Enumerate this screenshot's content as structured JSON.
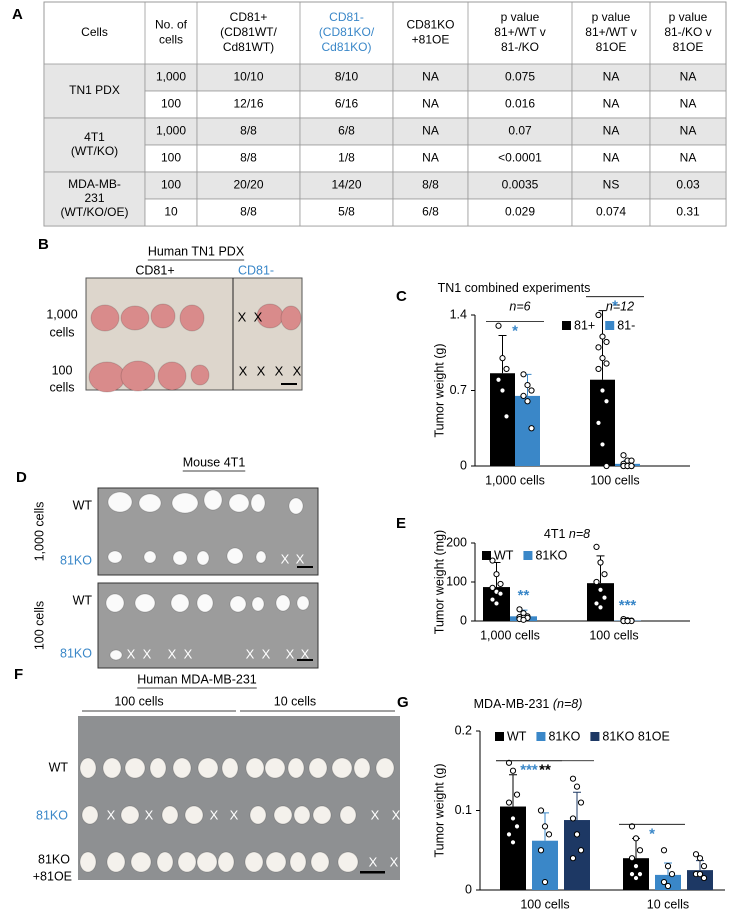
{
  "panel_labels": [
    "A",
    "B",
    "C",
    "D",
    "E",
    "F",
    "G"
  ],
  "table": {
    "header": [
      [
        "Cells"
      ],
      [
        "No. of",
        "cells"
      ],
      [
        "CD81+",
        "(CD81WT/",
        "Cd81WT)"
      ],
      [
        "CD81-",
        "(CD81KO/",
        "Cd81KO)"
      ],
      [
        "CD81KO",
        "+81OE"
      ],
      [
        "p value",
        "81+/WT v",
        "81-/KO"
      ],
      [
        "p value",
        "81+/WT v",
        "81OE"
      ],
      [
        "p value",
        "81-/KO v",
        "81OE"
      ]
    ],
    "groups": [
      {
        "label": [
          "TN1 PDX"
        ],
        "rows": [
          [
            "1,000",
            "10/10",
            "8/10",
            "NA",
            "0.075",
            "NA",
            "NA"
          ],
          [
            "100",
            "12/16",
            "6/16",
            "NA",
            "0.016",
            "NA",
            "NA"
          ]
        ]
      },
      {
        "label": [
          "4T1",
          "(WT/KO)"
        ],
        "rows": [
          [
            "1,000",
            "8/8",
            "6/8",
            "NA",
            "0.07",
            "NA",
            "NA"
          ],
          [
            "100",
            "8/8",
            "1/8",
            "NA",
            "<0.0001",
            "NA",
            "NA"
          ]
        ]
      },
      {
        "label": [
          "MDA-MB-",
          "231",
          "(WT/KO/OE)"
        ],
        "rows": [
          [
            "100",
            "20/20",
            "14/20",
            "8/8",
            "0.0035",
            "NS",
            "0.03"
          ],
          [
            "10",
            "8/8",
            "5/8",
            "6/8",
            "0.029",
            "0.074",
            "0.31"
          ]
        ]
      }
    ]
  },
  "panel_b": {
    "title": "Human TN1 PDX",
    "columns": [
      "CD81+",
      "CD81-"
    ],
    "rows": [
      [
        "1,000",
        "cells"
      ],
      [
        "100",
        "cells"
      ]
    ],
    "absent_mark": "X"
  },
  "panel_d": {
    "title": "Mouse 4T1",
    "groups": [
      "1,000 cells",
      "100 cells"
    ],
    "rows": [
      "WT",
      "81KO"
    ],
    "absent_mark": "X"
  },
  "panel_f": {
    "title": "Human MDA-MB-231",
    "groups": [
      "100 cells",
      "10 cells"
    ],
    "rows": [
      [
        "WT"
      ],
      [
        "81KO"
      ],
      [
        "81KO",
        "+81OE"
      ]
    ],
    "absent_mark": "X"
  },
  "chart_data": [
    {
      "type": "bar",
      "title": "TN1 combined experiments",
      "n_labels": [
        "n=6",
        "n=12"
      ],
      "ylabel": "Tumor weight (g)",
      "categories": [
        "1,000 cells",
        "100 cells"
      ],
      "ylim": [
        0,
        1.4
      ],
      "yticks": [
        0,
        0.7,
        1.4
      ],
      "legend": "top-right",
      "series": [
        {
          "name": "81+",
          "color": "#000000",
          "values": [
            0.86,
            0.8
          ],
          "errors": [
            0.35,
            0.64
          ],
          "points": [
            [
              1.3,
              1.0,
              0.9,
              0.8,
              0.7,
              0.46
            ],
            [
              1.4,
              1.2,
              1.15,
              1.1,
              1.0,
              0.95,
              0.9,
              0.7,
              0.6,
              0.4,
              0.2,
              0
            ]
          ]
        },
        {
          "name": "81-",
          "color": "#3a87c8",
          "values": [
            0.65,
            0.02
          ],
          "errors": [
            0.2,
            0.03
          ],
          "points": [
            [
              0.85,
              0.75,
              0.7,
              0.65,
              0.6,
              0.35
            ],
            [
              0.1,
              0.05,
              0.05,
              0.02,
              0,
              0,
              0,
              0,
              0,
              0,
              0,
              0
            ]
          ]
        }
      ],
      "significance": [
        {
          "category": 0,
          "series": [
            0,
            1
          ],
          "text": "*",
          "color": "#3a87c8"
        },
        {
          "category": 1,
          "series": [
            0,
            1
          ],
          "text": "*",
          "color": "#3a87c8"
        }
      ]
    },
    {
      "type": "bar",
      "title": "4T1",
      "subtitle": "n=8",
      "ylabel": "Tumor weight (mg)",
      "categories": [
        "1,000 cells",
        "100 cells"
      ],
      "ylim": [
        0,
        200
      ],
      "yticks": [
        0,
        100,
        200
      ],
      "legend": "top-left",
      "series": [
        {
          "name": "WT",
          "color": "#000000",
          "values": [
            87,
            97
          ],
          "errors": [
            63,
            70
          ],
          "points": [
            [
              155,
              120,
              95,
              85,
              75,
              70,
              55,
              45
            ],
            [
              190,
              150,
              120,
              100,
              80,
              60,
              45,
              35
            ]
          ]
        },
        {
          "name": "81KO",
          "color": "#3a87c8",
          "values": [
            12,
            1
          ],
          "errors": [
            16,
            1
          ],
          "points": [
            [
              30,
              20,
              12,
              10,
              8,
              8,
              5,
              3
            ],
            [
              5,
              2,
              1,
              0,
              0,
              0,
              0,
              0
            ]
          ]
        }
      ],
      "significance": [
        {
          "category": 0,
          "series": [
            1,
            1
          ],
          "text": "**",
          "color": "#3a87c8"
        },
        {
          "category": 1,
          "series": [
            1,
            1
          ],
          "text": "***",
          "color": "#3a87c8"
        }
      ]
    },
    {
      "type": "bar",
      "title": "MDA-MB-231",
      "subtitle": "(n=8)",
      "ylabel": "Tumor weight (g)",
      "categories": [
        "100 cells",
        "10 cells"
      ],
      "ylim": [
        0,
        0.2
      ],
      "yticks": [
        0,
        0.1,
        0.2
      ],
      "legend": "top-left",
      "series": [
        {
          "name": "WT",
          "color": "#000000",
          "values": [
            0.105,
            0.04
          ],
          "errors": [
            0.04,
            0.025
          ],
          "points": [
            [
              0.16,
              0.15,
              0.12,
              0.11,
              0.09,
              0.08,
              0.07,
              0.06
            ],
            [
              0.08,
              0.065,
              0.05,
              0.04,
              0.03,
              0.02,
              0.02,
              0.015
            ]
          ]
        },
        {
          "name": "81KO",
          "color": "#3a87c8",
          "values": [
            0.062,
            0.019
          ],
          "errors": [
            0.035,
            0.015
          ],
          "points": [
            [
              0.1,
              0.08,
              0.07,
              0.05,
              0.01
            ],
            [
              0.05,
              0.03,
              0.02,
              0.01,
              0.005
            ]
          ]
        },
        {
          "name": "81KO 81OE",
          "color": "#1d3864",
          "values": [
            0.088,
            0.025
          ],
          "errors": [
            0.035,
            0.012
          ],
          "points": [
            [
              0.14,
              0.13,
              0.11,
              0.09,
              0.07,
              0.05,
              0.04,
              0.07
            ],
            [
              0.045,
              0.04,
              0.03,
              0.02,
              0.02,
              0.015
            ]
          ]
        }
      ],
      "significance": [
        {
          "category": 0,
          "series": [
            0,
            1
          ],
          "text": "***",
          "color": "#3a87c8"
        },
        {
          "category": 0,
          "series": [
            0,
            2
          ],
          "text": "**",
          "color": "#000000"
        },
        {
          "category": 1,
          "series": [
            0,
            1
          ],
          "text": "*",
          "color": "#3a87c8"
        }
      ]
    }
  ]
}
